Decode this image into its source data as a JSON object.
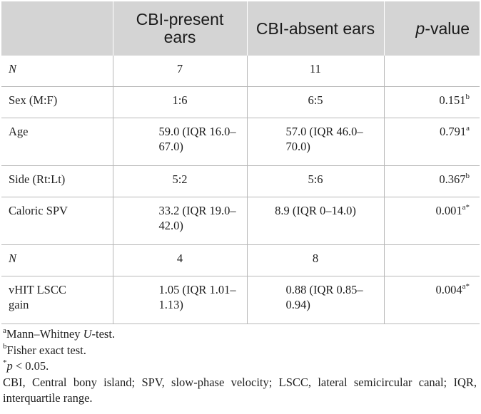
{
  "header": {
    "col1": "",
    "col2": "CBI-present ears",
    "col3": "CBI-absent ears",
    "col4_italic": "p",
    "col4_rest": "-value"
  },
  "rows": [
    {
      "label": "N",
      "label_italic": true,
      "present": "7",
      "absent": "11",
      "p": "",
      "p_sup": ""
    },
    {
      "label": "Sex (M:F)",
      "present": "1:6",
      "absent": "6:5",
      "p": "0.151",
      "p_sup": "b"
    },
    {
      "label": "Age",
      "present": "59.0 (IQR 16.0–67.0)",
      "absent": "57.0 (IQR 46.0–70.0)",
      "p": "0.791",
      "p_sup": "a"
    },
    {
      "label": "Side (Rt:Lt)",
      "present": "5:2",
      "absent": "5:6",
      "p": "0.367",
      "p_sup": "b"
    },
    {
      "label": "Caloric SPV",
      "present": "33.2 (IQR 19.0–42.0)",
      "absent": "8.9 (IQR 0–14.0)",
      "p": "0.001",
      "p_sup": "a*"
    },
    {
      "label": "N",
      "label_italic": true,
      "present": "4",
      "absent": "8",
      "p": "",
      "p_sup": ""
    },
    {
      "label": "vHIT LSCC gain",
      "present": "1.05 (IQR 1.01–1.13)",
      "absent": "0.88 (IQR 0.85–0.94)",
      "p": "0.004",
      "p_sup": "a*"
    }
  ],
  "footnotes": {
    "a_sup": "a",
    "a_text": "Mann–Whitney ",
    "a_italic": "U",
    "a_tail": "-test.",
    "b_sup": "b",
    "b_text": "Fisher exact test.",
    "star_sup": "*",
    "star_italic": "p",
    "star_text": " < 0.05.",
    "abbrev": "CBI, Central bony island; SPV, slow-phase velocity; LSCC, lateral semicircular canal; IQR, interquartile range."
  }
}
